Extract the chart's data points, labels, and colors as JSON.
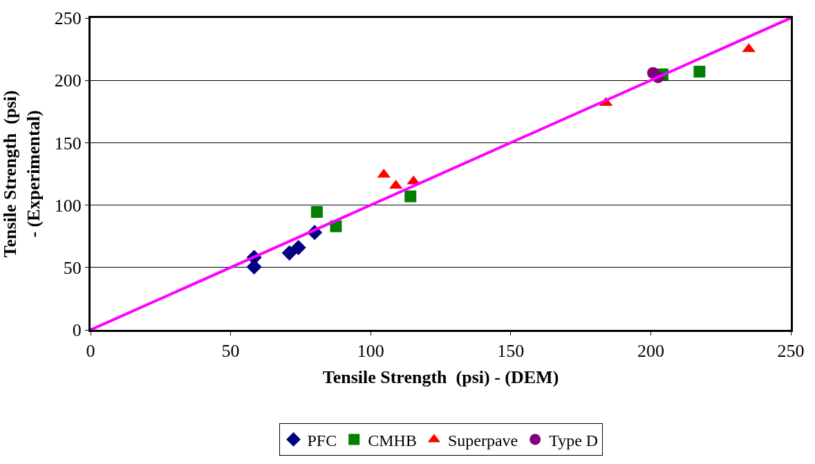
{
  "chart_data": {
    "type": "scatter",
    "xlabel": "Tensile Strength  (psi) - (DEM)",
    "ylabel": "Tensile Strength  (psi) - (Experimental)",
    "xlim": [
      0,
      250
    ],
    "ylim": [
      0,
      250
    ],
    "xticks": [
      0,
      50,
      100,
      150,
      200,
      250
    ],
    "yticks": [
      0,
      50,
      100,
      150,
      200,
      250
    ],
    "grid": "y",
    "legend": "bottom",
    "series": [
      {
        "name": "PFC",
        "color": "#000080",
        "marker": "diamond",
        "x": [
          58.4,
          58.4,
          71,
          74.2,
          80
        ],
        "values": [
          58,
          50.5,
          61.6,
          66,
          78
        ]
      },
      {
        "name": "CMHB",
        "color": "#008000",
        "marker": "square",
        "x": [
          80.8,
          87.6,
          114.2,
          204.2,
          217.4
        ],
        "values": [
          94.5,
          83,
          107,
          204.8,
          207
        ]
      },
      {
        "name": "Superpave",
        "color": "#ff0000",
        "marker": "triangle",
        "x": [
          104.7,
          109,
          115.3,
          184,
          235
        ],
        "values": [
          124.4,
          115.6,
          119,
          182,
          225
        ]
      },
      {
        "name": "Type D",
        "color": "#800080",
        "marker": "circle",
        "x": [
          200.8,
          202.6
        ],
        "values": [
          206,
          202.5
        ]
      },
      {
        "type": "line",
        "color": "#ff00ff",
        "marker": "none",
        "x": [
          0,
          250
        ],
        "values": [
          0,
          250
        ]
      }
    ]
  }
}
